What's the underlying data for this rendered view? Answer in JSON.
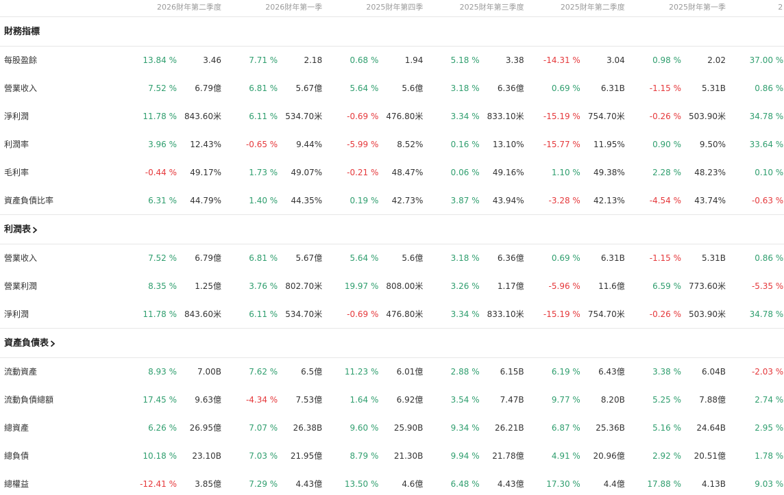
{
  "header": {
    "periods": [
      "2026財年第二季度",
      "2026財年第一季",
      "2025財年第四季",
      "2025財年第三季度",
      "2025財年第二季度",
      "2025財年第一季",
      "2"
    ]
  },
  "sections": [
    {
      "title": "財務指標",
      "rows": [
        {
          "label": "每股盈餘",
          "cells": [
            [
              "13.84 %",
              "3.46"
            ],
            [
              "7.71 %",
              "2.18"
            ],
            [
              "0.68 %",
              "1.94"
            ],
            [
              "5.18 %",
              "3.38"
            ],
            [
              "-14.31 %",
              "3.04"
            ],
            [
              "0.98 %",
              "2.02"
            ],
            [
              "37.00 %"
            ]
          ]
        },
        {
          "label": "營業收入",
          "cells": [
            [
              "7.52 %",
              "6.79億"
            ],
            [
              "6.81 %",
              "5.67億"
            ],
            [
              "5.64 %",
              "5.6億"
            ],
            [
              "3.18 %",
              "6.36億"
            ],
            [
              "0.69 %",
              "6.31B"
            ],
            [
              "-1.15 %",
              "5.31B"
            ],
            [
              "0.86 %"
            ]
          ]
        },
        {
          "label": "淨利潤",
          "cells": [
            [
              "11.78 %",
              "843.60米"
            ],
            [
              "6.11 %",
              "534.70米"
            ],
            [
              "-0.69 %",
              "476.80米"
            ],
            [
              "3.34 %",
              "833.10米"
            ],
            [
              "-15.19 %",
              "754.70米"
            ],
            [
              "-0.26 %",
              "503.90米"
            ],
            [
              "34.78 %"
            ]
          ]
        },
        {
          "label": "利潤率",
          "cells": [
            [
              "3.96 %",
              "12.43%"
            ],
            [
              "-0.65 %",
              "9.44%"
            ],
            [
              "-5.99 %",
              "8.52%"
            ],
            [
              "0.16 %",
              "13.10%"
            ],
            [
              "-15.77 %",
              "11.95%"
            ],
            [
              "0.90 %",
              "9.50%"
            ],
            [
              "33.64 %"
            ]
          ]
        },
        {
          "label": "毛利率",
          "cells": [
            [
              "-0.44 %",
              "49.17%"
            ],
            [
              "1.73 %",
              "49.07%"
            ],
            [
              "-0.21 %",
              "48.47%"
            ],
            [
              "0.06 %",
              "49.16%"
            ],
            [
              "1.10 %",
              "49.38%"
            ],
            [
              "2.28 %",
              "48.23%"
            ],
            [
              "0.10 %"
            ]
          ]
        },
        {
          "label": "資產負債比率",
          "cells": [
            [
              "6.31 %",
              "44.79%"
            ],
            [
              "1.40 %",
              "44.35%"
            ],
            [
              "0.19 %",
              "42.73%"
            ],
            [
              "3.87 %",
              "43.94%"
            ],
            [
              "-3.28 %",
              "42.13%"
            ],
            [
              "-4.54 %",
              "43.74%"
            ],
            [
              "-0.63 %"
            ]
          ]
        }
      ]
    },
    {
      "title": "利潤表",
      "rows": [
        {
          "label": "營業收入",
          "cells": [
            [
              "7.52 %",
              "6.79億"
            ],
            [
              "6.81 %",
              "5.67億"
            ],
            [
              "5.64 %",
              "5.6億"
            ],
            [
              "3.18 %",
              "6.36億"
            ],
            [
              "0.69 %",
              "6.31B"
            ],
            [
              "-1.15 %",
              "5.31B"
            ],
            [
              "0.86 %"
            ]
          ]
        },
        {
          "label": "營業利潤",
          "cells": [
            [
              "8.35 %",
              "1.25億"
            ],
            [
              "3.76 %",
              "802.70米"
            ],
            [
              "19.97 %",
              "808.00米"
            ],
            [
              "3.26 %",
              "1.17億"
            ],
            [
              "-5.96 %",
              "11.6億"
            ],
            [
              "6.59 %",
              "773.60米"
            ],
            [
              "-5.35 %"
            ]
          ]
        },
        {
          "label": "淨利潤",
          "cells": [
            [
              "11.78 %",
              "843.60米"
            ],
            [
              "6.11 %",
              "534.70米"
            ],
            [
              "-0.69 %",
              "476.80米"
            ],
            [
              "3.34 %",
              "833.10米"
            ],
            [
              "-15.19 %",
              "754.70米"
            ],
            [
              "-0.26 %",
              "503.90米"
            ],
            [
              "34.78 %"
            ]
          ]
        }
      ]
    },
    {
      "title": "資產負債表",
      "rows": [
        {
          "label": "流動資產",
          "cells": [
            [
              "8.93 %",
              "7.00B"
            ],
            [
              "7.62 %",
              "6.5億"
            ],
            [
              "11.23 %",
              "6.01億"
            ],
            [
              "2.88 %",
              "6.15B"
            ],
            [
              "6.19 %",
              "6.43億"
            ],
            [
              "3.38 %",
              "6.04B"
            ],
            [
              "-2.03 %"
            ]
          ]
        },
        {
          "label": "流動負債總額",
          "cells": [
            [
              "17.45 %",
              "9.63億"
            ],
            [
              "-4.34 %",
              "7.53億"
            ],
            [
              "1.64 %",
              "6.92億"
            ],
            [
              "3.54 %",
              "7.47B"
            ],
            [
              "9.77 %",
              "8.20B"
            ],
            [
              "5.25 %",
              "7.88億"
            ],
            [
              "2.74 %"
            ]
          ]
        },
        {
          "label": "總資產",
          "cells": [
            [
              "6.26 %",
              "26.95億"
            ],
            [
              "7.07 %",
              "26.38B"
            ],
            [
              "9.60 %",
              "25.90B"
            ],
            [
              "9.34 %",
              "26.21B"
            ],
            [
              "6.87 %",
              "25.36B"
            ],
            [
              "5.16 %",
              "24.64B"
            ],
            [
              "2.95 %"
            ]
          ]
        },
        {
          "label": "總負債",
          "cells": [
            [
              "10.18 %",
              "23.10B"
            ],
            [
              "7.03 %",
              "21.95億"
            ],
            [
              "8.79 %",
              "21.30B"
            ],
            [
              "9.94 %",
              "21.78億"
            ],
            [
              "4.91 %",
              "20.96億"
            ],
            [
              "2.92 %",
              "20.51億"
            ],
            [
              "1.78 %"
            ]
          ]
        },
        {
          "label": "總權益",
          "cells": [
            [
              "-12.41 %",
              "3.85億"
            ],
            [
              "7.29 %",
              "4.43億"
            ],
            [
              "13.50 %",
              "4.6億"
            ],
            [
              "6.48 %",
              "4.43億"
            ],
            [
              "17.30 %",
              "4.4億"
            ],
            [
              "17.88 %",
              "4.13B"
            ],
            [
              "9.03 %"
            ]
          ]
        }
      ]
    }
  ]
}
